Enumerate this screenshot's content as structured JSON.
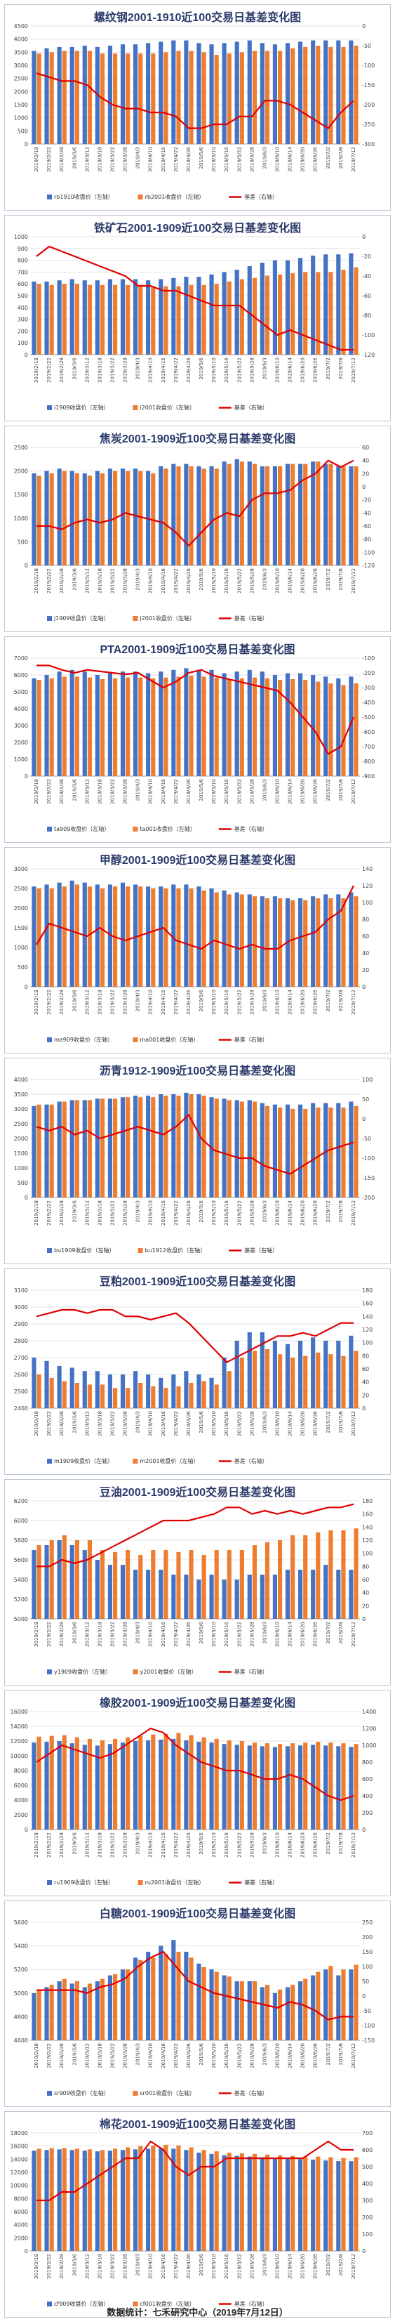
{
  "footer": "数据统计：七禾研究中心（2019年7月12日）",
  "colors": {
    "far": "#4472c4",
    "near": "#ed7d31",
    "basis": "#e00000"
  },
  "legend_suffix": {
    "far": "收盘价（左轴）",
    "near": "收盘价（左轴）",
    "basis": "基差（右轴）"
  },
  "dates": [
    "2019/2/18",
    "2019/2/22",
    "2019/2/28",
    "2019/3/6",
    "2019/3/12",
    "2019/3/18",
    "2019/3/22",
    "2019/3/28",
    "2019/4/3",
    "2019/4/10",
    "2019/4/16",
    "2019/4/22",
    "2019/4/26",
    "2019/5/6",
    "2019/5/10",
    "2019/5/16",
    "2019/5/22",
    "2019/5/28",
    "2019/6/3",
    "2019/6/10",
    "2019/6/14",
    "2019/6/20",
    "2019/6/26",
    "2019/7/2",
    "2019/7/8",
    "2019/7/12"
  ],
  "chart_data": [
    {
      "type": "bar+line",
      "title": "螺纹钢2001-1910近100交易日基差变化图",
      "far": "rb1910",
      "near": "rb2001",
      "yl": [
        0,
        4500,
        500
      ],
      "yr": [
        -300,
        0,
        50
      ],
      "far_vals": [
        3550,
        3650,
        3700,
        3700,
        3750,
        3700,
        3750,
        3800,
        3800,
        3850,
        3900,
        3950,
        3950,
        3850,
        3800,
        3850,
        3900,
        3950,
        3850,
        3800,
        3850,
        3900,
        3950,
        3950,
        3950,
        3950
      ],
      "near_vals": [
        3450,
        3500,
        3550,
        3550,
        3550,
        3450,
        3450,
        3450,
        3450,
        3450,
        3500,
        3550,
        3550,
        3500,
        3400,
        3450,
        3500,
        3550,
        3550,
        3550,
        3650,
        3700,
        3750,
        3700,
        3700,
        3750
      ],
      "basis": [
        -120,
        -130,
        -140,
        -140,
        -150,
        -180,
        -200,
        -210,
        -210,
        -220,
        -220,
        -230,
        -260,
        -260,
        -250,
        -250,
        -230,
        -230,
        -190,
        -190,
        -200,
        -220,
        -240,
        -260,
        -220,
        -190
      ]
    },
    {
      "type": "bar+line",
      "title": "铁矿石2001-1909近100交易日基差变化图",
      "far": "i1909",
      "near": "i2001",
      "yl": [
        0,
        1000,
        100
      ],
      "yr": [
        -120,
        0,
        20
      ],
      "far_vals": [
        620,
        620,
        630,
        640,
        630,
        630,
        640,
        640,
        640,
        630,
        640,
        650,
        660,
        660,
        680,
        700,
        720,
        750,
        780,
        800,
        800,
        820,
        840,
        850,
        850,
        860
      ],
      "near_vals": [
        600,
        590,
        600,
        600,
        590,
        590,
        590,
        590,
        580,
        580,
        580,
        580,
        590,
        590,
        600,
        620,
        640,
        650,
        670,
        680,
        690,
        700,
        700,
        700,
        720,
        740
      ],
      "basis": [
        -20,
        -10,
        -15,
        -20,
        -25,
        -30,
        -35,
        -40,
        -50,
        -50,
        -55,
        -55,
        -60,
        -65,
        -70,
        -70,
        -70,
        -80,
        -90,
        -100,
        -95,
        -100,
        -105,
        -110,
        -115,
        -115
      ]
    },
    {
      "type": "bar+line",
      "title": "焦炭2001-1909近100交易日基差变化图",
      "far": "j1909",
      "near": "j2001",
      "yl": [
        0,
        2500,
        500
      ],
      "yr": [
        -120,
        60,
        20
      ],
      "far_vals": [
        1950,
        2000,
        2050,
        2000,
        1950,
        2000,
        2050,
        2050,
        2050,
        2000,
        2100,
        2150,
        2150,
        2100,
        2100,
        2200,
        2250,
        2200,
        2100,
        2100,
        2150,
        2150,
        2200,
        2150,
        2100,
        2100
      ],
      "near_vals": [
        1900,
        1950,
        2000,
        1950,
        1900,
        1950,
        2000,
        2000,
        2000,
        1950,
        2050,
        2100,
        2100,
        2050,
        2050,
        2150,
        2200,
        2150,
        2100,
        2100,
        2150,
        2150,
        2200,
        2150,
        2100,
        2100
      ],
      "basis": [
        -60,
        -60,
        -65,
        -55,
        -50,
        -55,
        -50,
        -40,
        -45,
        -50,
        -55,
        -70,
        -90,
        -70,
        -50,
        -40,
        -45,
        -20,
        -10,
        -10,
        -5,
        10,
        20,
        40,
        30,
        40
      ]
    },
    {
      "type": "bar+line",
      "title": "PTA2001-1909近100交易日基差变化图",
      "far": "ta909",
      "near": "ta001",
      "yl": [
        0,
        7000,
        1000
      ],
      "yr": [
        -900,
        -100,
        100
      ],
      "far_vals": [
        5800,
        6000,
        6200,
        6300,
        6200,
        6000,
        6100,
        6200,
        6200,
        6100,
        6200,
        6300,
        6400,
        6300,
        6300,
        6100,
        6200,
        6300,
        6200,
        6000,
        6100,
        6100,
        6000,
        5900,
        5800,
        5900
      ],
      "near_vals": [
        5700,
        5800,
        5900,
        5900,
        5850,
        5750,
        5800,
        5850,
        5850,
        5800,
        5850,
        5900,
        5950,
        5900,
        5850,
        5750,
        5800,
        5850,
        5800,
        5700,
        5750,
        5700,
        5600,
        5500,
        5400,
        5500
      ],
      "basis": [
        -150,
        -150,
        -180,
        -200,
        -180,
        -190,
        -200,
        -210,
        -200,
        -250,
        -300,
        -260,
        -200,
        -180,
        -220,
        -240,
        -260,
        -280,
        -300,
        -320,
        -400,
        -500,
        -600,
        -750,
        -700,
        -500
      ]
    },
    {
      "type": "bar+line",
      "title": "甲醇2001-1909近100交易日基差变化图",
      "far": "ma909",
      "near": "ma001",
      "yl": [
        0,
        3000,
        500
      ],
      "yr": [
        0,
        140,
        20
      ],
      "far_vals": [
        2550,
        2600,
        2650,
        2700,
        2650,
        2600,
        2600,
        2650,
        2600,
        2550,
        2550,
        2600,
        2600,
        2550,
        2500,
        2450,
        2400,
        2350,
        2300,
        2300,
        2250,
        2250,
        2300,
        2350,
        2350,
        2400
      ],
      "near_vals": [
        2500,
        2500,
        2550,
        2600,
        2550,
        2500,
        2550,
        2550,
        2550,
        2500,
        2500,
        2500,
        2500,
        2450,
        2400,
        2350,
        2350,
        2300,
        2250,
        2250,
        2200,
        2200,
        2250,
        2250,
        2250,
        2300
      ],
      "basis": [
        50,
        75,
        70,
        65,
        60,
        70,
        60,
        55,
        60,
        65,
        70,
        55,
        50,
        45,
        55,
        50,
        45,
        50,
        45,
        45,
        55,
        60,
        65,
        80,
        90,
        120
      ]
    },
    {
      "type": "bar+line",
      "title": "沥青1912-1909近100交易日基差变化图",
      "far": "bu1909",
      "near": "bu1912",
      "yl": [
        0,
        4000,
        500
      ],
      "yr": [
        -200,
        100,
        50
      ],
      "far_vals": [
        3100,
        3150,
        3250,
        3300,
        3300,
        3350,
        3350,
        3400,
        3450,
        3450,
        3500,
        3500,
        3550,
        3500,
        3400,
        3350,
        3300,
        3300,
        3200,
        3150,
        3150,
        3150,
        3200,
        3200,
        3200,
        3250
      ],
      "near_vals": [
        3150,
        3150,
        3250,
        3300,
        3300,
        3350,
        3350,
        3400,
        3400,
        3400,
        3450,
        3450,
        3500,
        3450,
        3350,
        3300,
        3250,
        3250,
        3100,
        3050,
        3000,
        3000,
        3050,
        3050,
        3050,
        3100
      ],
      "basis": [
        -20,
        -30,
        -20,
        -40,
        -30,
        -50,
        -40,
        -30,
        -20,
        -30,
        -40,
        -20,
        10,
        -50,
        -80,
        -90,
        -100,
        -100,
        -120,
        -130,
        -140,
        -120,
        -100,
        -80,
        -70,
        -60
      ]
    },
    {
      "type": "bar+line",
      "title": "豆粕2001-1909近100交易日基差变化图",
      "far": "m1909",
      "near": "m2001",
      "yl": [
        2400,
        3100,
        100
      ],
      "yr": [
        0,
        180,
        20
      ],
      "far_vals": [
        2700,
        2680,
        2650,
        2640,
        2620,
        2620,
        2600,
        2600,
        2620,
        2600,
        2580,
        2600,
        2620,
        2600,
        2580,
        2700,
        2800,
        2850,
        2850,
        2800,
        2780,
        2800,
        2820,
        2800,
        2800,
        2830
      ],
      "near_vals": [
        2600,
        2580,
        2560,
        2550,
        2540,
        2540,
        2520,
        2520,
        2550,
        2530,
        2520,
        2530,
        2550,
        2560,
        2540,
        2620,
        2700,
        2740,
        2750,
        2720,
        2700,
        2710,
        2730,
        2720,
        2710,
        2740
      ],
      "basis": [
        140,
        145,
        150,
        150,
        145,
        150,
        150,
        140,
        140,
        135,
        140,
        145,
        130,
        110,
        90,
        70,
        80,
        90,
        100,
        110,
        110,
        115,
        110,
        120,
        130,
        130
      ]
    },
    {
      "type": "bar+line",
      "title": "豆油2001-1909近100交易日基差变化图",
      "far": "y1909",
      "near": "y2001",
      "yl": [
        5000,
        6200,
        200
      ],
      "yr": [
        0,
        180,
        20
      ],
      "far_vals": [
        5700,
        5750,
        5800,
        5750,
        5700,
        5600,
        5550,
        5550,
        5500,
        5500,
        5500,
        5450,
        5450,
        5400,
        5450,
        5400,
        5400,
        5450,
        5450,
        5450,
        5500,
        5500,
        5500,
        5550,
        5500,
        5500
      ],
      "near_vals": [
        5750,
        5800,
        5850,
        5800,
        5800,
        5700,
        5680,
        5700,
        5650,
        5700,
        5700,
        5680,
        5700,
        5650,
        5700,
        5700,
        5700,
        5750,
        5780,
        5800,
        5850,
        5850,
        5880,
        5900,
        5900,
        5920
      ],
      "basis": [
        80,
        80,
        90,
        85,
        90,
        100,
        110,
        120,
        130,
        140,
        150,
        150,
        150,
        155,
        160,
        170,
        170,
        160,
        165,
        160,
        165,
        160,
        165,
        170,
        170,
        175
      ]
    },
    {
      "type": "bar+line",
      "title": "橡胶2001-1909近100交易日基差变化图",
      "far": "ru1909",
      "near": "ru2001",
      "yl": [
        0,
        16000,
        2000
      ],
      "yr": [
        0,
        1400,
        200
      ],
      "far_vals": [
        11800,
        11900,
        12000,
        11700,
        11500,
        11400,
        11600,
        11800,
        12000,
        12100,
        12200,
        12300,
        12100,
        11900,
        11800,
        11600,
        11500,
        11400,
        11300,
        11200,
        11300,
        11400,
        11500,
        11400,
        11300,
        11200
      ],
      "near_vals": [
        12600,
        12700,
        12800,
        12500,
        12300,
        12100,
        12300,
        12500,
        12700,
        12900,
        13000,
        13100,
        12800,
        12500,
        12300,
        12100,
        12000,
        11800,
        11700,
        11600,
        11700,
        11800,
        11900,
        11800,
        11700,
        11600
      ],
      "basis": [
        800,
        900,
        1000,
        950,
        900,
        850,
        900,
        1000,
        1100,
        1200,
        1150,
        1000,
        900,
        800,
        750,
        700,
        700,
        650,
        600,
        600,
        650,
        600,
        500,
        400,
        350,
        400
      ]
    },
    {
      "type": "bar+line",
      "title": "白糖2001-1909近100交易日基差变化图",
      "far": "sr909",
      "near": "sr001",
      "yl": [
        4600,
        5600,
        200
      ],
      "yr": [
        -150,
        250,
        50
      ],
      "far_vals": [
        5000,
        5050,
        5100,
        5080,
        5050,
        5100,
        5150,
        5200,
        5300,
        5350,
        5400,
        5450,
        5350,
        5250,
        5200,
        5150,
        5100,
        5100,
        5050,
        5000,
        5050,
        5100,
        5150,
        5200,
        5150,
        5200
      ],
      "near_vals": [
        5020,
        5070,
        5120,
        5100,
        5080,
        5120,
        5160,
        5200,
        5280,
        5300,
        5330,
        5350,
        5300,
        5220,
        5180,
        5140,
        5100,
        5100,
        5070,
        5030,
        5070,
        5120,
        5180,
        5230,
        5200,
        5240
      ],
      "basis": [
        20,
        20,
        20,
        20,
        10,
        30,
        40,
        60,
        100,
        130,
        150,
        100,
        50,
        30,
        10,
        0,
        -10,
        -20,
        -30,
        -40,
        -20,
        -30,
        -50,
        -80,
        -70,
        -70
      ]
    },
    {
      "type": "bar+line",
      "title": "棉花2001-1909近100交易日基差变化图",
      "far": "cf909",
      "near": "cf001",
      "yl": [
        0,
        18000,
        2000
      ],
      "yr": [
        0,
        700,
        100
      ],
      "far_vals": [
        15300,
        15400,
        15500,
        15400,
        15300,
        15200,
        15300,
        15400,
        15500,
        15600,
        15700,
        15600,
        15400,
        15000,
        14800,
        14600,
        14500,
        14400,
        14300,
        14200,
        14100,
        14000,
        13900,
        13800,
        13700,
        13700
      ],
      "near_vals": [
        15600,
        15700,
        15700,
        15600,
        15500,
        15400,
        15600,
        15800,
        16000,
        16100,
        16200,
        16100,
        15800,
        15400,
        15200,
        15000,
        14900,
        14800,
        14700,
        14600,
        14500,
        14400,
        14400,
        14300,
        14200,
        14300
      ],
      "basis": [
        300,
        300,
        350,
        350,
        400,
        450,
        500,
        550,
        550,
        650,
        600,
        500,
        450,
        500,
        500,
        550,
        550,
        550,
        550,
        550,
        550,
        550,
        600,
        650,
        600,
        600
      ]
    }
  ]
}
